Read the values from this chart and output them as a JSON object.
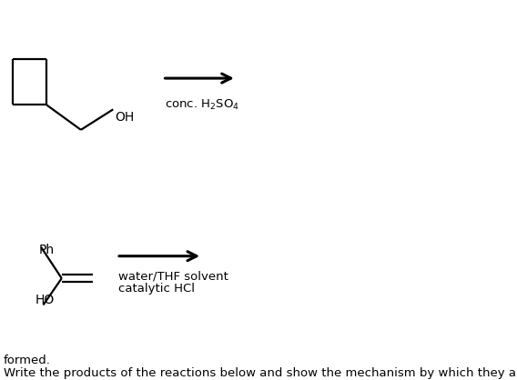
{
  "title_line1": "Write the products of the reactions below and show the mechanism by which they are",
  "title_line2": "formed.",
  "reaction1_label_above": "catalytic HCl",
  "reaction1_label_below": "water/THF solvent",
  "reaction2_label": "conc. H₂SO₄",
  "background": "#ffffff",
  "text_color": "#000000",
  "font_size_title": 10,
  "font_size_label": 9.5
}
